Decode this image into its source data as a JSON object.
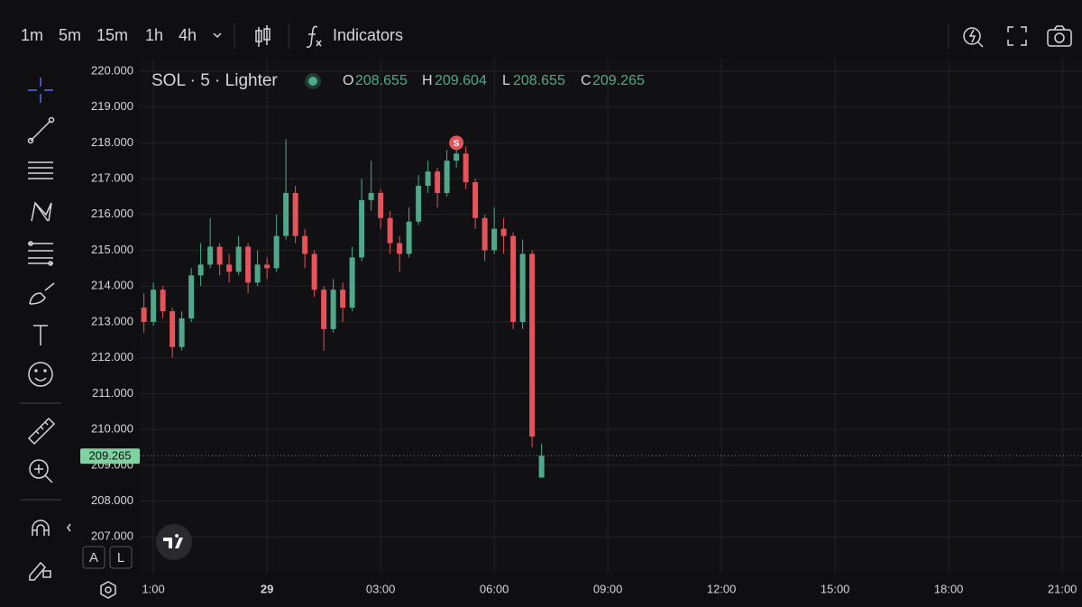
{
  "toolbar": {
    "intervals": [
      "1m",
      "5m",
      "15m",
      "1h",
      "4h"
    ],
    "indicators": "Indicators"
  },
  "scale_buttons": [
    "A",
    "L"
  ],
  "chart_data": {
    "type": "candlestick",
    "title": "SOL · 5 · Lighter",
    "legend": [
      {
        "key": "O",
        "value": 208.655
      },
      {
        "key": "H",
        "value": 209.604
      },
      {
        "key": "L",
        "value": 208.655
      },
      {
        "key": "C",
        "value": 209.265
      }
    ],
    "x": [
      20.75,
      21,
      21.25,
      21.5,
      21.75,
      22,
      22.25,
      22.5,
      22.75,
      23,
      23.25,
      23.5,
      23.75,
      24,
      24.25,
      24.5,
      24.75,
      25,
      25.25,
      25.5,
      25.75,
      26,
      26.25,
      26.5,
      26.75,
      27,
      27.25,
      27.5,
      27.75,
      28,
      28.25,
      28.5,
      28.75,
      29,
      29.25,
      29.5,
      29.75,
      30,
      30.25,
      30.5,
      30.75,
      31,
      31.25
    ],
    "open": [
      213.4,
      213.0,
      213.9,
      213.3,
      212.3,
      213.1,
      214.3,
      214.6,
      215.1,
      214.6,
      214.4,
      215.1,
      214.1,
      214.6,
      214.5,
      215.4,
      216.6,
      215.4,
      214.9,
      213.9,
      212.8,
      213.9,
      213.4,
      214.8,
      216.4,
      216.6,
      215.9,
      215.2,
      214.9,
      215.8,
      216.8,
      217.2,
      216.6,
      217.5,
      217.7,
      216.9,
      215.9,
      215.0,
      215.6,
      215.4,
      213.0,
      214.9,
      208.655
    ],
    "high": [
      213.8,
      214.1,
      214.0,
      213.4,
      213.3,
      214.5,
      215.2,
      215.9,
      215.2,
      214.9,
      215.4,
      215.2,
      215.0,
      214.8,
      216.0,
      218.1,
      216.8,
      215.6,
      215.0,
      214.0,
      214.2,
      214.1,
      215.1,
      217.0,
      217.5,
      216.7,
      216.1,
      215.4,
      216.2,
      217.1,
      217.5,
      217.3,
      217.8,
      218.0,
      217.9,
      217.0,
      216.0,
      216.2,
      215.9,
      215.5,
      215.3,
      215.0,
      209.604
    ],
    "low": [
      212.7,
      212.9,
      213.1,
      212.0,
      212.2,
      213.0,
      214.0,
      214.5,
      214.3,
      214.1,
      214.3,
      213.8,
      214.0,
      214.2,
      214.4,
      215.3,
      215.2,
      214.5,
      213.7,
      212.2,
      212.7,
      213.0,
      213.3,
      214.7,
      216.1,
      215.6,
      214.9,
      214.4,
      214.8,
      215.7,
      216.6,
      216.2,
      216.5,
      217.3,
      216.7,
      215.6,
      214.7,
      214.9,
      214.9,
      212.8,
      212.8,
      209.5,
      208.655
    ],
    "close": [
      213.0,
      213.9,
      213.3,
      212.3,
      213.1,
      214.3,
      214.6,
      215.1,
      214.6,
      214.4,
      215.1,
      214.1,
      214.6,
      214.5,
      215.4,
      216.6,
      215.4,
      214.9,
      213.9,
      212.8,
      213.9,
      213.4,
      214.8,
      216.4,
      216.6,
      215.9,
      215.2,
      214.9,
      215.8,
      216.8,
      217.2,
      216.6,
      217.5,
      217.7,
      216.9,
      215.9,
      215.0,
      215.6,
      215.4,
      213.0,
      214.9,
      209.8,
      209.265
    ],
    "up_color": "#4fa889",
    "down_color": "#e5535b",
    "xlim": [
      20.64,
      45.52
    ],
    "xticks": [
      {
        "value": 21,
        "label": "1:00"
      },
      {
        "value": 24,
        "label": "29"
      },
      {
        "value": 27,
        "label": "03:00"
      },
      {
        "value": 30,
        "label": "06:00"
      },
      {
        "value": 33,
        "label": "09:00"
      },
      {
        "value": 36,
        "label": "12:00"
      },
      {
        "value": 39,
        "label": "15:00"
      },
      {
        "value": 42,
        "label": "18:00"
      },
      {
        "value": 45,
        "label": "21:00"
      }
    ],
    "ylim": [
      206.0,
      220.35
    ],
    "yticks": [
      {
        "value": 207,
        "label": "207.000"
      },
      {
        "value": 208,
        "label": "208.000"
      },
      {
        "value": 209,
        "label": "209.000"
      },
      {
        "value": 210,
        "label": "210.000"
      },
      {
        "value": 211,
        "label": "211.000"
      },
      {
        "value": 212,
        "label": "212.000"
      },
      {
        "value": 213,
        "label": "213.000"
      },
      {
        "value": 214,
        "label": "214.000"
      },
      {
        "value": 215,
        "label": "215.000"
      },
      {
        "value": 216,
        "label": "216.000"
      },
      {
        "value": 217,
        "label": "217.000"
      },
      {
        "value": 218,
        "label": "218.000"
      },
      {
        "value": 219,
        "label": "219.000"
      },
      {
        "value": 220,
        "label": "220.000"
      }
    ],
    "grid": true,
    "last_price": 209.265,
    "annotations": [
      {
        "label": "S",
        "x": 29,
        "y": 218
      }
    ]
  }
}
